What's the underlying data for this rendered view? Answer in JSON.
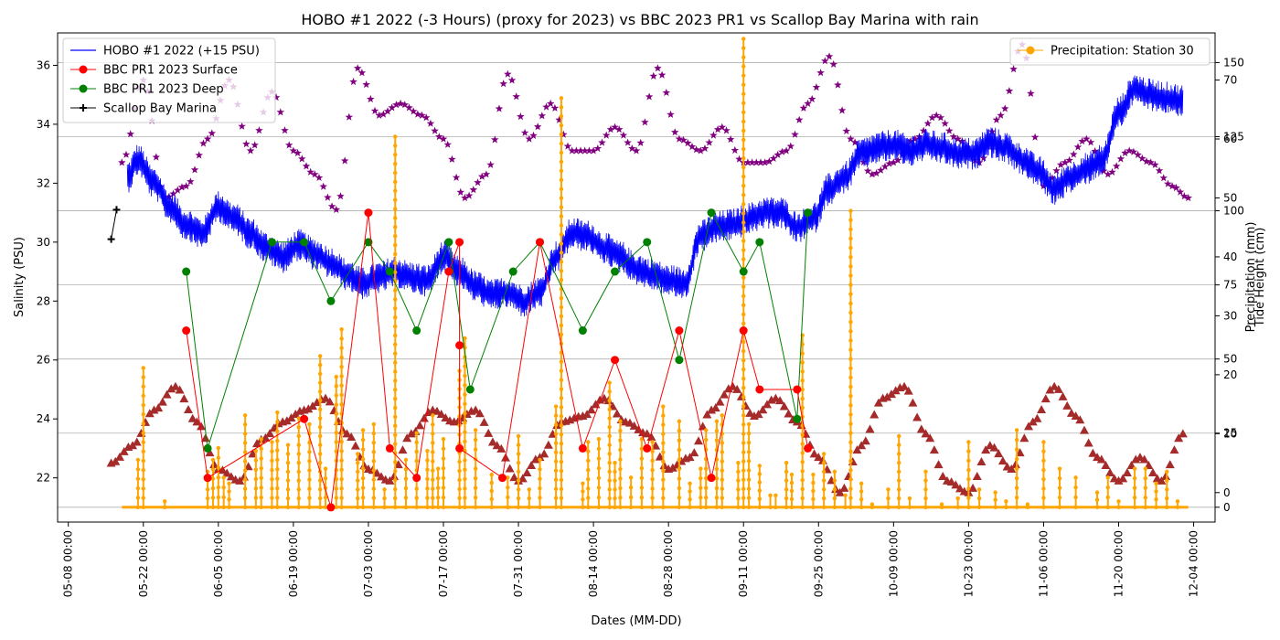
{
  "chart_data": {
    "type": "line",
    "title": "HOBO #1 2022 (-3 Hours) (proxy for 2023) vs BBC 2023 PR1 vs Scallop Bay Marina with rain",
    "xlabel": "Dates (MM-DD)",
    "ylabel": "Salinity (PSU)",
    "ylabel_right_1": "Precipitation (mm)",
    "ylabel_right_2": "Tide Height (cm)",
    "x_ticks": [
      "05-08 00:00",
      "05-22 00:00",
      "06-05 00:00",
      "06-19 00:00",
      "07-03 00:00",
      "07-17 00:00",
      "07-31 00:00",
      "08-14 00:00",
      "08-28 00:00",
      "09-11 00:00",
      "09-25 00:00",
      "10-09 00:00",
      "10-23 00:00",
      "11-06 00:00",
      "11-20 00:00",
      "12-04 00:00"
    ],
    "xlim": [
      "2023-05-06",
      "2023-12-08"
    ],
    "ylim": [
      20.5,
      37.1
    ],
    "y_ticks": [
      22,
      24,
      26,
      28,
      30,
      32,
      34,
      36
    ],
    "precip_ylim": [
      -5,
      160
    ],
    "precip_ticks": [
      0,
      25,
      50,
      75,
      100,
      125,
      150
    ],
    "tide_ylim": [
      -5,
      78
    ],
    "tide_ticks": [
      0,
      10,
      20,
      30,
      40,
      50,
      60,
      70
    ],
    "grid": "horizontal",
    "legends": {
      "left": {
        "placement": "upper-left",
        "entries": [
          {
            "label": "HOBO #1 2022 (+15 PSU)",
            "color": "#0000ff",
            "marker": "line"
          },
          {
            "label": "BBC PR1 2023 Surface",
            "color": "#ff0000",
            "marker": "circle"
          },
          {
            "label": "BBC PR1 2023 Deep",
            "color": "#008000",
            "marker": "circle"
          },
          {
            "label": "Scallop Bay Marina",
            "color": "#000000",
            "marker": "plus"
          }
        ]
      },
      "right": {
        "placement": "upper-right",
        "entries": [
          {
            "label": "Precipitation: Station 30",
            "color": "#ffa500",
            "marker": "circle"
          }
        ]
      }
    },
    "series": [
      {
        "name": "HOBO #1 2022 (+15 PSU)",
        "color": "#0000ff",
        "kind": "line-noisy",
        "noise_amplitude": 0.55,
        "x": [
          "2023-05-19",
          "2023-05-21",
          "2023-05-24",
          "2023-05-27",
          "2023-05-30",
          "2023-06-02",
          "2023-06-05",
          "2023-06-08",
          "2023-06-11",
          "2023-06-14",
          "2023-06-17",
          "2023-06-20",
          "2023-06-23",
          "2023-06-26",
          "2023-06-29",
          "2023-07-02",
          "2023-07-05",
          "2023-07-08",
          "2023-07-11",
          "2023-07-14",
          "2023-07-17",
          "2023-07-20",
          "2023-07-23",
          "2023-07-26",
          "2023-07-29",
          "2023-08-01",
          "2023-08-04",
          "2023-08-07",
          "2023-08-10",
          "2023-08-13",
          "2023-08-16",
          "2023-08-19",
          "2023-08-22",
          "2023-08-25",
          "2023-08-28",
          "2023-08-31",
          "2023-09-03",
          "2023-09-06",
          "2023-09-09",
          "2023-09-12",
          "2023-09-15",
          "2023-09-18",
          "2023-09-21",
          "2023-09-24",
          "2023-09-27",
          "2023-09-30",
          "2023-10-03",
          "2023-10-06",
          "2023-10-09",
          "2023-10-12",
          "2023-10-15",
          "2023-10-18",
          "2023-10-21",
          "2023-10-24",
          "2023-10-27",
          "2023-10-30",
          "2023-11-02",
          "2023-11-05",
          "2023-11-08",
          "2023-11-11",
          "2023-11-14",
          "2023-11-17",
          "2023-11-20",
          "2023-11-23",
          "2023-11-26",
          "2023-11-29",
          "2023-12-02"
        ],
        "y": [
          32.2,
          32.8,
          32.0,
          31.2,
          30.6,
          30.3,
          31.2,
          30.8,
          30.3,
          29.8,
          29.5,
          29.9,
          29.6,
          29.3,
          28.9,
          28.6,
          28.8,
          29.0,
          28.8,
          28.7,
          29.5,
          29.0,
          28.5,
          28.2,
          28.3,
          28.0,
          28.3,
          29.5,
          30.3,
          30.2,
          29.8,
          29.5,
          29.1,
          28.9,
          28.7,
          28.6,
          30.2,
          30.5,
          30.6,
          30.8,
          31.0,
          31.0,
          30.5,
          30.8,
          31.8,
          32.2,
          33.0,
          33.2,
          33.3,
          33.1,
          33.3,
          33.2,
          33.0,
          33.0,
          33.4,
          33.2,
          32.8,
          32.4,
          31.8,
          32.2,
          32.5,
          32.8,
          34.4,
          35.2,
          35.0,
          34.9,
          34.8
        ]
      },
      {
        "name": "BBC PR1 2023 Surface",
        "color": "#ff0000",
        "kind": "line-markers",
        "x": [
          "2023-05-30",
          "2023-06-03",
          "2023-06-21",
          "2023-06-26",
          "2023-07-03",
          "2023-07-07",
          "2023-07-12",
          "2023-07-18",
          "2023-07-20",
          "2023-07-20",
          "2023-07-20",
          "2023-07-28",
          "2023-08-04",
          "2023-08-12",
          "2023-08-18",
          "2023-08-24",
          "2023-08-30",
          "2023-09-05",
          "2023-09-11",
          "2023-09-14",
          "2023-09-21",
          "2023-09-23"
        ],
        "y": [
          27,
          22,
          24,
          21,
          31,
          23,
          22,
          29,
          30,
          26.5,
          23,
          22,
          30,
          23,
          26,
          23,
          27,
          22,
          27,
          25,
          25,
          23
        ]
      },
      {
        "name": "BBC PR1 2023 Deep",
        "color": "#008000",
        "kind": "line-markers",
        "x": [
          "2023-05-30",
          "2023-06-03",
          "2023-06-15",
          "2023-06-21",
          "2023-06-26",
          "2023-07-03",
          "2023-07-07",
          "2023-07-12",
          "2023-07-18",
          "2023-07-22",
          "2023-07-30",
          "2023-08-04",
          "2023-08-12",
          "2023-08-18",
          "2023-08-24",
          "2023-08-30",
          "2023-09-05",
          "2023-09-11",
          "2023-09-14",
          "2023-09-21",
          "2023-09-23"
        ],
        "y": [
          29,
          23,
          30,
          30,
          28,
          30,
          29,
          27,
          30,
          25,
          29,
          30,
          27,
          29,
          30,
          26,
          31,
          29,
          30,
          24,
          31
        ]
      },
      {
        "name": "Scallop Bay Marina",
        "color": "#000000",
        "kind": "line-plus",
        "x": [
          "2023-05-16",
          "2023-05-17"
        ],
        "y": [
          30.1,
          31.1
        ]
      },
      {
        "name": "Precipitation: Station 30",
        "color": "#ffa500",
        "axis": "precipitation",
        "kind": "spikes",
        "x": [
          "2023-05-21",
          "2023-05-22",
          "2023-05-26",
          "2023-06-03",
          "2023-06-04",
          "2023-06-05",
          "2023-06-06",
          "2023-06-07",
          "2023-06-10",
          "2023-06-12",
          "2023-06-13",
          "2023-06-15",
          "2023-06-16",
          "2023-06-18",
          "2023-06-20",
          "2023-06-22",
          "2023-06-24",
          "2023-06-25",
          "2023-06-27",
          "2023-06-28",
          "2023-07-01",
          "2023-07-02",
          "2023-07-04",
          "2023-07-06",
          "2023-07-08",
          "2023-07-10",
          "2023-07-12",
          "2023-07-14",
          "2023-07-15",
          "2023-07-16",
          "2023-07-17",
          "2023-07-20",
          "2023-07-21",
          "2023-07-23",
          "2023-07-26",
          "2023-07-29",
          "2023-07-31",
          "2023-08-02",
          "2023-08-04",
          "2023-08-07",
          "2023-08-08",
          "2023-08-12",
          "2023-08-13",
          "2023-08-15",
          "2023-08-17",
          "2023-08-18",
          "2023-08-19",
          "2023-08-21",
          "2023-08-23",
          "2023-08-25",
          "2023-08-27",
          "2023-08-30",
          "2023-09-01",
          "2023-09-03",
          "2023-09-04",
          "2023-09-06",
          "2023-09-07",
          "2023-09-10",
          "2023-09-11",
          "2023-09-12",
          "2023-09-14",
          "2023-09-16",
          "2023-09-17",
          "2023-09-19",
          "2023-09-20",
          "2023-09-22",
          "2023-09-24",
          "2023-09-26",
          "2023-09-28",
          "2023-09-30",
          "2023-10-01",
          "2023-10-03",
          "2023-10-05",
          "2023-10-08",
          "2023-10-10",
          "2023-10-12",
          "2023-10-15",
          "2023-10-18",
          "2023-10-21",
          "2023-10-23",
          "2023-10-25",
          "2023-10-28",
          "2023-10-30",
          "2023-11-01",
          "2023-11-03",
          "2023-11-06",
          "2023-11-09",
          "2023-11-12",
          "2023-11-16",
          "2023-11-18",
          "2023-11-20",
          "2023-11-23",
          "2023-11-25",
          "2023-11-27",
          "2023-11-29",
          "2023-12-01"
        ],
        "y": [
          16,
          47,
          2,
          12,
          16,
          20,
          10,
          8,
          31,
          19,
          23,
          22,
          32,
          21,
          30,
          28,
          51,
          13,
          44,
          60,
          18,
          26,
          28,
          6,
          125,
          16,
          25,
          19,
          31,
          13,
          23,
          46,
          57,
          26,
          11,
          10,
          24,
          6,
          16,
          34,
          138,
          8,
          22,
          23,
          42,
          15,
          29,
          10,
          23,
          22,
          34,
          29,
          8,
          13,
          26,
          29,
          31,
          15,
          158,
          28,
          14,
          4,
          4,
          15,
          11,
          58,
          11,
          18,
          12,
          4,
          100,
          8,
          1,
          6,
          24,
          3,
          12,
          1,
          3,
          22,
          6,
          5,
          2,
          26,
          1,
          22,
          13,
          10,
          5,
          10,
          2,
          13,
          13,
          8,
          12,
          2
        ]
      },
      {
        "name": "Tide (purple)",
        "color": "#800080",
        "axis": "tide",
        "kind": "star-markers",
        "x": [
          "2023-05-18",
          "2023-05-22",
          "2023-05-26",
          "2023-05-30",
          "2023-06-03",
          "2023-06-07",
          "2023-06-11",
          "2023-06-15",
          "2023-06-19",
          "2023-06-23",
          "2023-06-27",
          "2023-07-01",
          "2023-07-05",
          "2023-07-09",
          "2023-07-13",
          "2023-07-17",
          "2023-07-21",
          "2023-07-25",
          "2023-07-29",
          "2023-08-02",
          "2023-08-06",
          "2023-08-10",
          "2023-08-14",
          "2023-08-18",
          "2023-08-22",
          "2023-08-26",
          "2023-08-30",
          "2023-09-03",
          "2023-09-07",
          "2023-09-11",
          "2023-09-15",
          "2023-09-19",
          "2023-09-23",
          "2023-09-27",
          "2023-10-01",
          "2023-10-05",
          "2023-10-09",
          "2023-10-13",
          "2023-10-17",
          "2023-10-21",
          "2023-10-25",
          "2023-10-29",
          "2023-11-02",
          "2023-11-06",
          "2023-11-10",
          "2023-11-14",
          "2023-11-18",
          "2023-11-22",
          "2023-11-26",
          "2023-11-30",
          "2023-12-03"
        ],
        "y": [
          56,
          70,
          50,
          52,
          60,
          70,
          58,
          68,
          58,
          54,
          48,
          72,
          64,
          66,
          64,
          60,
          50,
          54,
          71,
          60,
          66,
          58,
          58,
          62,
          58,
          72,
          60,
          58,
          62,
          56,
          56,
          58,
          66,
          74,
          60,
          54,
          56,
          60,
          64,
          60,
          56,
          64,
          76,
          52,
          56,
          60,
          54,
          58,
          56,
          52,
          50
        ]
      },
      {
        "name": "Tide (brown)",
        "color": "#a52a2a",
        "axis": "tide",
        "kind": "triangle-markers",
        "x": [
          "2023-05-16",
          "2023-05-20",
          "2023-05-24",
          "2023-05-28",
          "2023-06-01",
          "2023-06-05",
          "2023-06-09",
          "2023-06-13",
          "2023-06-17",
          "2023-06-21",
          "2023-06-25",
          "2023-06-29",
          "2023-07-03",
          "2023-07-07",
          "2023-07-11",
          "2023-07-15",
          "2023-07-19",
          "2023-07-23",
          "2023-07-27",
          "2023-07-31",
          "2023-08-04",
          "2023-08-08",
          "2023-08-12",
          "2023-08-16",
          "2023-08-20",
          "2023-08-24",
          "2023-08-28",
          "2023-09-01",
          "2023-09-05",
          "2023-09-09",
          "2023-09-13",
          "2023-09-17",
          "2023-09-21",
          "2023-09-25",
          "2023-09-29",
          "2023-10-03",
          "2023-10-07",
          "2023-10-11",
          "2023-10-15",
          "2023-10-19",
          "2023-10-23",
          "2023-10-27",
          "2023-10-31",
          "2023-11-04",
          "2023-11-08",
          "2023-11-12",
          "2023-11-16",
          "2023-11-20",
          "2023-11-24",
          "2023-11-28",
          "2023-12-02"
        ],
        "y": [
          5,
          8,
          14,
          18,
          12,
          4,
          2,
          9,
          12,
          14,
          16,
          10,
          4,
          2,
          10,
          14,
          12,
          14,
          8,
          2,
          6,
          12,
          13,
          16,
          12,
          10,
          4,
          6,
          14,
          18,
          13,
          16,
          12,
          6,
          0,
          8,
          16,
          18,
          10,
          2,
          0,
          8,
          4,
          12,
          18,
          13,
          6,
          2,
          6,
          2,
          10
        ]
      }
    ]
  }
}
